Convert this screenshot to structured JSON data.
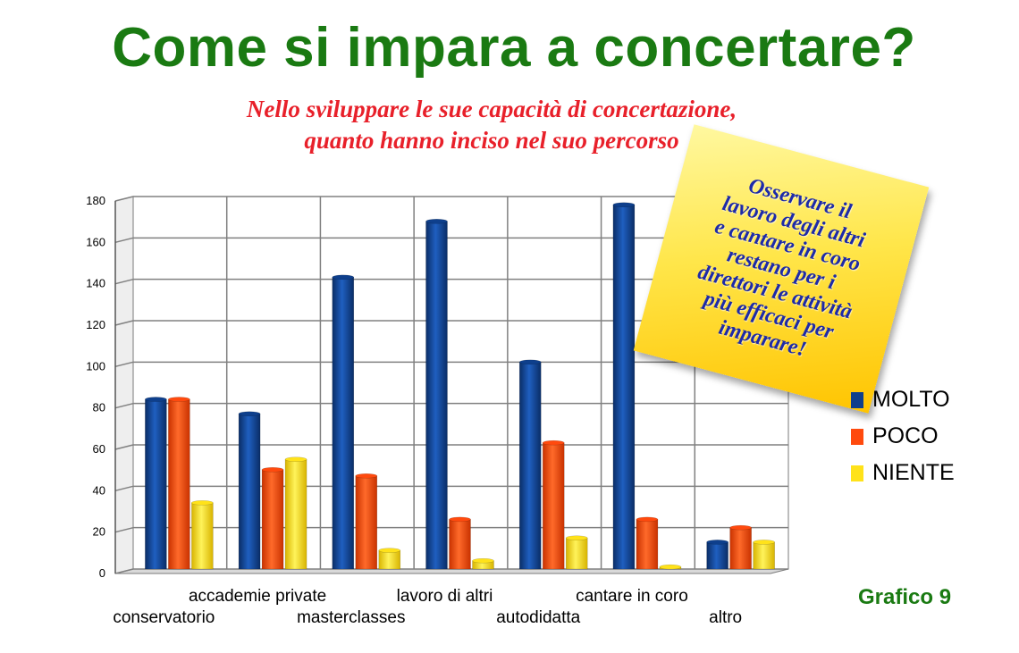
{
  "title": "Come si impara a concertare?",
  "subtitle_lines": [
    "Nello sviluppare le sue capacità di concertazione,",
    "quanto hanno inciso nel suo percorso"
  ],
  "note_lines": [
    "Osservare il",
    "lavoro degli altri",
    "e cantare in coro",
    "restano per i",
    "direttori le attività",
    "più efficaci per",
    "imparare!"
  ],
  "figure_label": "Grafico 9",
  "colors": {
    "title": "#1a7a12",
    "subtitle": "#e8202a",
    "note_text": "#1d2aa8",
    "molto": "#0e3f8c",
    "poco": "#ff4a0e",
    "niente": "#ffe21a"
  },
  "chart_data": {
    "type": "bar",
    "categories": [
      "conservatorio",
      "accademie private",
      "masterclasses",
      "lavoro di altri",
      "autodidatta",
      "cantare in coro",
      "altro"
    ],
    "series": [
      {
        "name": "MOLTO",
        "color": "#0e3f8c",
        "values": [
          82,
          75,
          141,
          168,
          100,
          176,
          13
        ]
      },
      {
        "name": "POCO",
        "color": "#ff4a0e",
        "values": [
          82,
          48,
          45,
          24,
          61,
          24,
          20
        ]
      },
      {
        "name": "NIENTE",
        "color": "#ffe21a",
        "values": [
          32,
          53,
          9,
          4,
          15,
          1,
          13
        ]
      }
    ],
    "ylim": [
      0,
      180
    ],
    "yticks": [
      0,
      20,
      40,
      60,
      80,
      100,
      120,
      140,
      160,
      180
    ],
    "grid": true,
    "legend": "right"
  }
}
